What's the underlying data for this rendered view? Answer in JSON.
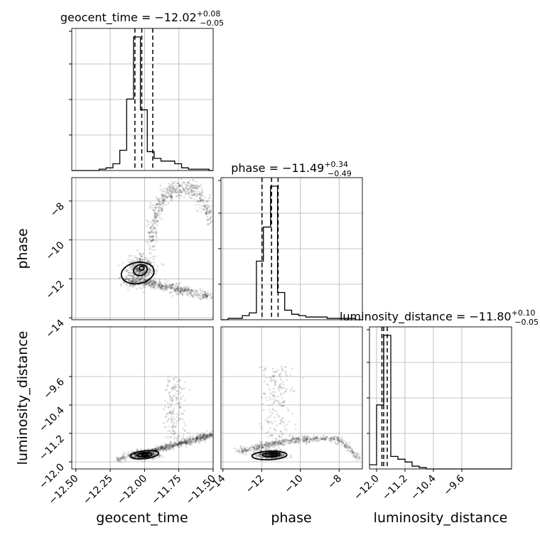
{
  "chart_data": {
    "type": "corner",
    "parameters": [
      {
        "key": "geocent_time",
        "label": "geocent_time",
        "ticks": [
          "−12.50",
          "−12.25",
          "−12.00",
          "−11.75",
          "−11.50"
        ],
        "tick_values": [
          -12.5,
          -12.25,
          -12.0,
          -11.75,
          -11.5
        ],
        "range": [
          -12.53,
          -11.5
        ]
      },
      {
        "key": "phase",
        "label": "phase",
        "ticks": [
          "−14",
          "−12",
          "−10",
          "−8"
        ],
        "tick_values": [
          -14,
          -12,
          -10,
          -8
        ],
        "range": [
          -14.1,
          -6.8
        ]
      },
      {
        "key": "luminosity_distance",
        "label": "luminosity_distance",
        "ticks": [
          "−12.0",
          "−11.2",
          "−10.4",
          "−9.6"
        ],
        "tick_values": [
          -12.0,
          -11.2,
          -10.4,
          -9.6
        ],
        "range": [
          -12.2,
          -8.2
        ]
      }
    ],
    "titles": [
      {
        "name": "geocent_time",
        "median": "−12.02",
        "plus": "+0.08",
        "minus": "−0.05"
      },
      {
        "name": "phase",
        "median": "−11.49",
        "plus": "+0.34",
        "minus": "−0.49"
      },
      {
        "name": "luminosity_distance",
        "median": "−11.80",
        "plus": "+0.10",
        "minus": "−0.05"
      }
    ],
    "quantiles": {
      "geocent_time": [
        -12.07,
        -12.02,
        -11.94
      ],
      "phase": [
        -11.98,
        -11.49,
        -11.15
      ],
      "luminosity_distance": [
        -11.85,
        -11.8,
        -11.7
      ]
    },
    "histograms": {
      "geocent_time": {
        "edges": [
          -12.53,
          -12.48,
          -12.43,
          -12.38,
          -12.33,
          -12.28,
          -12.23,
          -12.18,
          -12.13,
          -12.08,
          -12.03,
          -11.98,
          -11.93,
          -11.88,
          -11.83,
          -11.78,
          -11.73,
          -11.68,
          -11.63,
          -11.58,
          -11.53,
          -11.5
        ],
        "counts": [
          0,
          0,
          0,
          0,
          0.01,
          0.02,
          0.05,
          0.15,
          0.53,
          0.99,
          0.45,
          0.14,
          0.09,
          0.07,
          0.07,
          0.05,
          0.02,
          0.01,
          0.01,
          0.01,
          0.0
        ]
      },
      "phase": {
        "edges": [
          -14.1,
          -13.73,
          -13.37,
          -13.0,
          -12.64,
          -12.27,
          -11.91,
          -11.54,
          -11.18,
          -10.81,
          -10.45,
          -10.08,
          -9.72,
          -9.35,
          -8.99,
          -8.62,
          -8.26,
          -7.89,
          -7.53,
          -7.16,
          -6.8
        ],
        "counts": [
          0,
          0.01,
          0.01,
          0.03,
          0.05,
          0.43,
          0.68,
          0.98,
          0.2,
          0.07,
          0.04,
          0.03,
          0.02,
          0.02,
          0.02,
          0.01,
          0.01,
          0.01,
          0.01,
          0
        ]
      },
      "luminosity_distance": {
        "edges": [
          -12.2,
          -12.0,
          -11.8,
          -11.6,
          -11.4,
          -11.2,
          -11.0,
          -10.8,
          -10.6,
          -10.4,
          -10.2,
          -10.0,
          -9.8,
          -9.6,
          -9.4,
          -9.2,
          -9.0,
          -8.8,
          -8.6,
          -8.4,
          -8.2
        ],
        "counts": [
          0.03,
          0.46,
          0.96,
          0.09,
          0.07,
          0.05,
          0.02,
          0.01,
          0.0,
          0,
          0,
          0,
          0,
          0,
          0,
          0,
          0,
          0,
          0,
          0
        ]
      }
    },
    "contour_levels": 2,
    "grid": true
  }
}
